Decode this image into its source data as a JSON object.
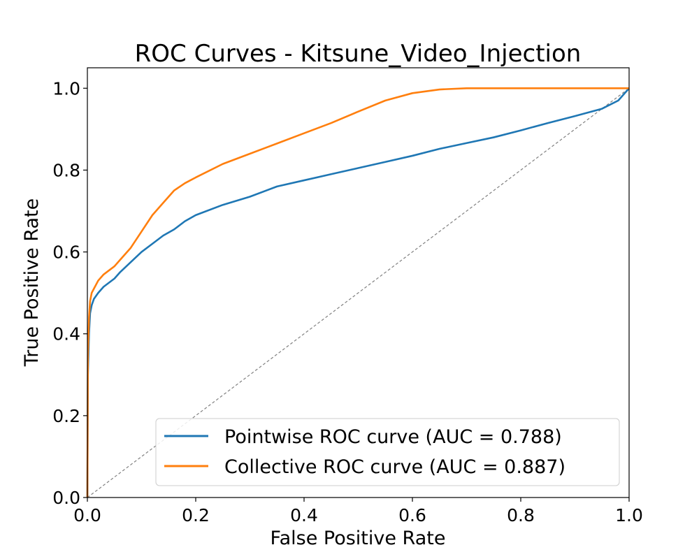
{
  "chart_data": {
    "type": "line",
    "title": "ROC Curves - Kitsune_Video_Injection",
    "xlabel": "False Positive Rate",
    "ylabel": "True Positive Rate",
    "xlim": [
      0.0,
      1.0
    ],
    "ylim": [
      0.0,
      1.05
    ],
    "grid": false,
    "legend_position": "lower-right",
    "x_ticks": [
      "0.0",
      "0.2",
      "0.4",
      "0.6",
      "0.8",
      "1.0"
    ],
    "y_ticks": [
      "0.0",
      "0.2",
      "0.4",
      "0.6",
      "0.8",
      "1.0"
    ],
    "series": [
      {
        "name": "Pointwise ROC curve (AUC = 0.788)",
        "color": "#1f77b4",
        "x": [
          0.0,
          0.001,
          0.003,
          0.005,
          0.008,
          0.012,
          0.02,
          0.03,
          0.04,
          0.05,
          0.06,
          0.08,
          0.1,
          0.12,
          0.14,
          0.16,
          0.18,
          0.2,
          0.25,
          0.3,
          0.35,
          0.4,
          0.45,
          0.5,
          0.55,
          0.6,
          0.65,
          0.7,
          0.75,
          0.8,
          0.85,
          0.9,
          0.95,
          0.98,
          1.0
        ],
        "y": [
          0.0,
          0.3,
          0.4,
          0.45,
          0.47,
          0.485,
          0.5,
          0.515,
          0.525,
          0.535,
          0.55,
          0.575,
          0.6,
          0.62,
          0.64,
          0.655,
          0.675,
          0.69,
          0.715,
          0.735,
          0.76,
          0.775,
          0.79,
          0.805,
          0.82,
          0.835,
          0.852,
          0.866,
          0.88,
          0.897,
          0.915,
          0.932,
          0.95,
          0.97,
          1.0
        ]
      },
      {
        "name": "Collective ROC curve (AUC = 0.887)",
        "color": "#ff7f0e",
        "x": [
          0.0,
          0.001,
          0.003,
          0.005,
          0.008,
          0.012,
          0.02,
          0.03,
          0.04,
          0.05,
          0.06,
          0.08,
          0.1,
          0.12,
          0.14,
          0.16,
          0.18,
          0.2,
          0.25,
          0.3,
          0.35,
          0.4,
          0.45,
          0.5,
          0.55,
          0.6,
          0.65,
          0.7,
          0.8,
          0.9,
          1.0
        ],
        "y": [
          0.0,
          0.35,
          0.44,
          0.48,
          0.5,
          0.51,
          0.53,
          0.545,
          0.555,
          0.565,
          0.58,
          0.61,
          0.65,
          0.69,
          0.72,
          0.75,
          0.768,
          0.782,
          0.815,
          0.84,
          0.865,
          0.89,
          0.915,
          0.943,
          0.97,
          0.988,
          0.997,
          1.0,
          1.0,
          1.0,
          1.0
        ]
      },
      {
        "name": "",
        "style": "dashed",
        "color": "#808080",
        "x": [
          0.0,
          1.0
        ],
        "y": [
          0.0,
          1.0
        ]
      }
    ]
  }
}
